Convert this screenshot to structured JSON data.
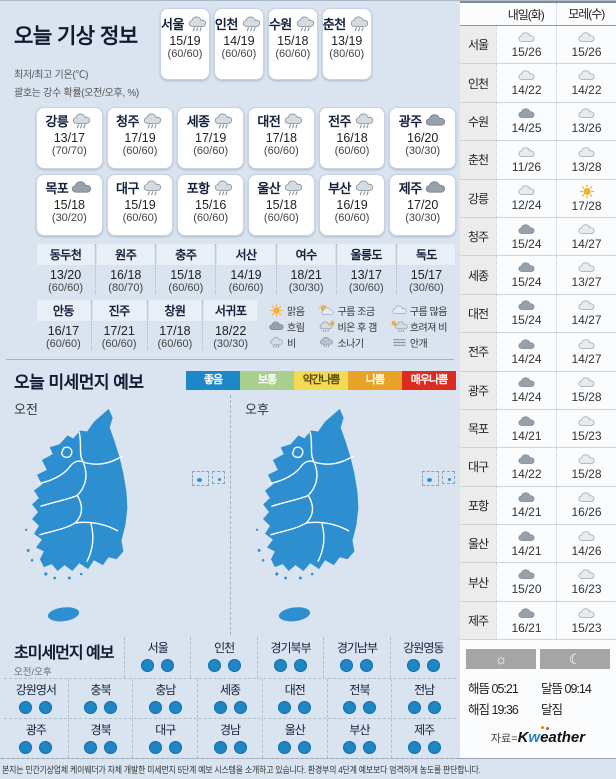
{
  "header": {
    "title": "오늘 기상 정보",
    "legend_line1": "최저/최고 기온(℃)",
    "legend_line2": "괄호는 강수 확률(오전/오후, %)"
  },
  "today_cards": {
    "row1": [
      {
        "name": "서울",
        "icon": "rain",
        "temp": "15/19",
        "prob": "(60/60)"
      },
      {
        "name": "인천",
        "icon": "rain",
        "temp": "14/19",
        "prob": "(60/60)"
      },
      {
        "name": "수원",
        "icon": "rain",
        "temp": "15/18",
        "prob": "(60/60)"
      },
      {
        "name": "춘천",
        "icon": "rain",
        "temp": "13/19",
        "prob": "(80/60)"
      }
    ],
    "row2": [
      {
        "name": "강릉",
        "icon": "rain",
        "temp": "13/17",
        "prob": "(70/70)"
      },
      {
        "name": "청주",
        "icon": "rain",
        "temp": "17/19",
        "prob": "(60/60)"
      },
      {
        "name": "세종",
        "icon": "rain",
        "temp": "17/19",
        "prob": "(60/60)"
      },
      {
        "name": "대전",
        "icon": "rain",
        "temp": "17/18",
        "prob": "(60/60)"
      },
      {
        "name": "전주",
        "icon": "rain",
        "temp": "16/18",
        "prob": "(60/60)"
      },
      {
        "name": "광주",
        "icon": "cloud-dark",
        "temp": "16/20",
        "prob": "(30/30)"
      }
    ],
    "row3": [
      {
        "name": "목포",
        "icon": "cloud-dark",
        "temp": "15/18",
        "prob": "(30/20)"
      },
      {
        "name": "대구",
        "icon": "rain",
        "temp": "15/19",
        "prob": "(60/60)"
      },
      {
        "name": "포항",
        "icon": "rain",
        "temp": "15/16",
        "prob": "(60/60)"
      },
      {
        "name": "울산",
        "icon": "rain",
        "temp": "15/18",
        "prob": "(60/60)"
      },
      {
        "name": "부산",
        "icon": "rain",
        "temp": "16/19",
        "prob": "(60/60)"
      },
      {
        "name": "제주",
        "icon": "cloud-dark",
        "temp": "17/20",
        "prob": "(30/30)"
      }
    ]
  },
  "extra_rows": {
    "row_a": [
      {
        "name": "동두천",
        "temp": "13/20",
        "prob": "(60/60)"
      },
      {
        "name": "원주",
        "temp": "16/18",
        "prob": "(80/70)"
      },
      {
        "name": "충주",
        "temp": "15/18",
        "prob": "(60/60)"
      },
      {
        "name": "서산",
        "temp": "14/19",
        "prob": "(60/60)"
      },
      {
        "name": "여수",
        "temp": "18/21",
        "prob": "(30/30)"
      },
      {
        "name": "울릉도",
        "temp": "13/17",
        "prob": "(30/60)"
      },
      {
        "name": "독도",
        "temp": "15/17",
        "prob": "(30/60)"
      }
    ],
    "row_b": [
      {
        "name": "안동",
        "temp": "16/17",
        "prob": "(60/60)"
      },
      {
        "name": "진주",
        "temp": "17/21",
        "prob": "(60/60)"
      },
      {
        "name": "창원",
        "temp": "17/18",
        "prob": "(60/60)"
      },
      {
        "name": "서귀포",
        "temp": "18/22",
        "prob": "(30/30)"
      }
    ]
  },
  "icon_legend": [
    {
      "icon": "sun",
      "label": "맑음"
    },
    {
      "icon": "partly",
      "label": "구름 조금"
    },
    {
      "icon": "cloud-light",
      "label": "구름 많음"
    },
    {
      "icon": "cloud-dark",
      "label": "흐림"
    },
    {
      "icon": "rain-sun",
      "label": "비온 후 갬"
    },
    {
      "icon": "sun-rain",
      "label": "흐려져 비"
    },
    {
      "icon": "rain",
      "label": "비"
    },
    {
      "icon": "shower",
      "label": "소나기"
    },
    {
      "icon": "fog",
      "label": "안개"
    }
  ],
  "dust": {
    "title": "오늘 미세먼지 예보",
    "am_label": "오전",
    "pm_label": "오후",
    "map_color": "#2e8fd0",
    "legend": [
      {
        "label": "좋음",
        "color": "#1d87c8",
        "text": "#ffffff"
      },
      {
        "label": "보통",
        "color": "#a9cf8e",
        "text": "#ffffff"
      },
      {
        "label": "약간나쁨",
        "color": "#f2da52",
        "text": "#5b4b10"
      },
      {
        "label": "나쁨",
        "color": "#e8a326",
        "text": "#ffffff"
      },
      {
        "label": "매우나쁨",
        "color": "#de2b1f",
        "text": "#ffffff"
      }
    ]
  },
  "ultrafine": {
    "title": "초미세먼지 예보",
    "sublabel": "오전/오후",
    "dot_color": "#1e86c4",
    "row1": [
      {
        "name": "서울"
      },
      {
        "name": "인천"
      },
      {
        "name": "경기북부"
      },
      {
        "name": "경기남부"
      },
      {
        "name": "강원영동"
      }
    ],
    "row2": [
      {
        "name": "강원영서"
      },
      {
        "name": "충북"
      },
      {
        "name": "충남"
      },
      {
        "name": "세종"
      },
      {
        "name": "대전"
      },
      {
        "name": "전북"
      },
      {
        "name": "전남"
      }
    ],
    "row3": [
      {
        "name": "광주"
      },
      {
        "name": "경북"
      },
      {
        "name": "대구"
      },
      {
        "name": "경남"
      },
      {
        "name": "울산"
      },
      {
        "name": "부산"
      },
      {
        "name": "제주"
      }
    ]
  },
  "sidebar": {
    "col_tomorrow": "내일(화)",
    "col_dayafter": "모레(수)",
    "rows": [
      {
        "name": "서울",
        "t_icon": "cloud-light",
        "t_temp": "15/26",
        "d_icon": "cloud-light",
        "d_temp": "15/26"
      },
      {
        "name": "인천",
        "t_icon": "cloud-light",
        "t_temp": "14/22",
        "d_icon": "cloud-light",
        "d_temp": "14/22"
      },
      {
        "name": "수원",
        "t_icon": "cloud-dark",
        "t_temp": "14/25",
        "d_icon": "cloud-light",
        "d_temp": "13/26"
      },
      {
        "name": "춘천",
        "t_icon": "cloud-light",
        "t_temp": "11/26",
        "d_icon": "cloud-light",
        "d_temp": "13/28"
      },
      {
        "name": "강릉",
        "t_icon": "cloud-light",
        "t_temp": "12/24",
        "d_icon": "sun",
        "d_temp": "17/28"
      },
      {
        "name": "청주",
        "t_icon": "cloud-dark",
        "t_temp": "15/24",
        "d_icon": "cloud-light",
        "d_temp": "14/27"
      },
      {
        "name": "세종",
        "t_icon": "cloud-dark",
        "t_temp": "15/24",
        "d_icon": "cloud-light",
        "d_temp": "13/27"
      },
      {
        "name": "대전",
        "t_icon": "cloud-dark",
        "t_temp": "15/24",
        "d_icon": "cloud-light",
        "d_temp": "14/27"
      },
      {
        "name": "전주",
        "t_icon": "cloud-dark",
        "t_temp": "14/24",
        "d_icon": "cloud-light",
        "d_temp": "14/27"
      },
      {
        "name": "광주",
        "t_icon": "cloud-dark",
        "t_temp": "14/24",
        "d_icon": "cloud-light",
        "d_temp": "15/28"
      },
      {
        "name": "목포",
        "t_icon": "cloud-dark",
        "t_temp": "14/21",
        "d_icon": "cloud-light",
        "d_temp": "15/23"
      },
      {
        "name": "대구",
        "t_icon": "cloud-dark",
        "t_temp": "14/22",
        "d_icon": "cloud-light",
        "d_temp": "15/28"
      },
      {
        "name": "포항",
        "t_icon": "cloud-dark",
        "t_temp": "14/21",
        "d_icon": "cloud-light",
        "d_temp": "16/26"
      },
      {
        "name": "울산",
        "t_icon": "cloud-dark",
        "t_temp": "14/21",
        "d_icon": "cloud-light",
        "d_temp": "14/26"
      },
      {
        "name": "부산",
        "t_icon": "cloud-dark",
        "t_temp": "15/20",
        "d_icon": "cloud-light",
        "d_temp": "16/23"
      },
      {
        "name": "제주",
        "t_icon": "cloud-dark",
        "t_temp": "16/21",
        "d_icon": "cloud-light",
        "d_temp": "15/23"
      }
    ]
  },
  "astro": {
    "sunrise_label": "해뜸",
    "sunrise": "05:21",
    "sunset_label": "해짐",
    "sunset": "19:36",
    "moonrise_label": "달뜸",
    "moonrise": "09:14",
    "moonset_label": "달짐",
    "moonset": ""
  },
  "source": {
    "prefix": "자료=",
    "brand_k": "K",
    "brand_w": "w",
    "brand_e": "e",
    "brand_rest": "ather"
  },
  "footer": "본지는 민간기상업체 케이웨더가 자체 개발한 미세먼지 5단계 예보 시스템을 소개하고 있습니다. 환경부의 4단계 예보보다 엄격하게 농도를 판단합니다."
}
